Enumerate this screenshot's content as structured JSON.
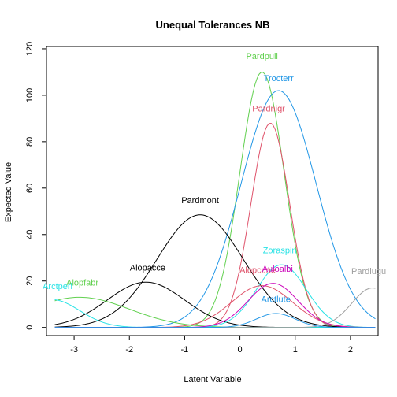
{
  "chart_data": {
    "type": "line",
    "title": "Unequal Tolerances NB",
    "xlabel": "Latent Variable",
    "ylabel": "Expected Value",
    "xlim": [
      -3.5,
      2.5
    ],
    "ylim": [
      -3.5,
      121
    ],
    "xticks": [
      -3,
      -2,
      -1,
      0,
      1,
      2
    ],
    "yticks": [
      0,
      20,
      40,
      60,
      80,
      100,
      120
    ],
    "grid": false,
    "legend": "none",
    "series": [
      {
        "name": "Pardpull",
        "color": "#61D04F",
        "optimum": 0.4,
        "peak": 110,
        "tolerance": 0.4,
        "label_x": 0.4,
        "label_y": 115.5
      },
      {
        "name": "Trocterr",
        "color": "#2297E6",
        "optimum": 0.7,
        "peak": 102,
        "tolerance": 0.68,
        "label_x": 0.7,
        "label_y": 106
      },
      {
        "name": "Pardnigr",
        "color": "#DF536B",
        "optimum": 0.55,
        "peak": 88,
        "tolerance": 0.35,
        "label_x": 0.52,
        "label_y": 93
      },
      {
        "name": "Pardmont",
        "color": "#000000",
        "optimum": -0.72,
        "peak": 48.5,
        "tolerance": 0.78,
        "label_x": -0.72,
        "label_y": 53.5
      },
      {
        "name": "Alopacce",
        "color": "#000000",
        "optimum": -1.7,
        "peak": 19.5,
        "tolerance": 0.7,
        "label_x": -1.67,
        "label_y": 24.5
      },
      {
        "name": "Alopfabr",
        "color": "#61D04F",
        "optimum": -2.9,
        "peak": 13,
        "tolerance": 0.9,
        "label_x": -2.85,
        "label_y": 18
      },
      {
        "name": "Arctperi",
        "color": "#28E2E5",
        "optimum": -3.4,
        "peak": 12,
        "tolerance": 0.5,
        "label_x": -3.3,
        "label_y": 16.5
      },
      {
        "name": "Zoraspin",
        "color": "#28E2E5",
        "optimum": 0.75,
        "peak": 27,
        "tolerance": 0.45,
        "label_x": 0.72,
        "label_y": 32
      },
      {
        "name": "Pardlugu",
        "color": "#9E9E9E",
        "optimum": 2.4,
        "peak": 17,
        "tolerance": 0.38,
        "label_x": 2.33,
        "label_y": 23
      },
      {
        "name": "Alopcune",
        "color": "#DF536B",
        "optimum": 0.4,
        "peak": 18,
        "tolerance": 0.55,
        "label_x": 0.32,
        "label_y": 23.5
      },
      {
        "name": "Auloalbi",
        "color": "#CD0BBC",
        "optimum": 0.6,
        "peak": 19,
        "tolerance": 0.45,
        "label_x": 0.68,
        "label_y": 24
      },
      {
        "name": "Arctlute",
        "color": "#2297E6",
        "optimum": 0.65,
        "peak": 6,
        "tolerance": 0.35,
        "label_x": 0.65,
        "label_y": 11
      }
    ]
  }
}
